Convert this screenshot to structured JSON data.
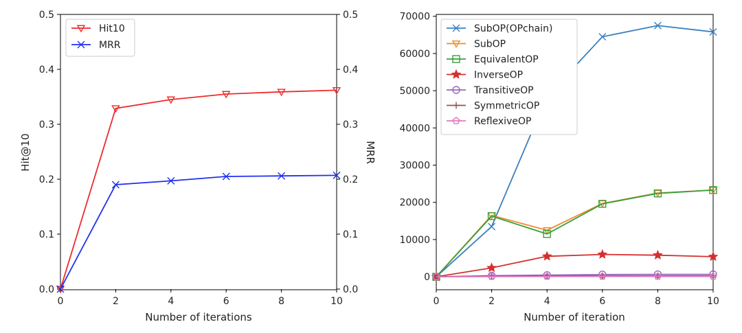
{
  "chart_data": [
    {
      "type": "line",
      "title": "",
      "xlabel": "Number of iterations",
      "ylabel": "Hit@10",
      "y2label": "MRR",
      "x": [
        0,
        2,
        4,
        6,
        8,
        10
      ],
      "xticks": [
        "0",
        "2",
        "4",
        "6",
        "8",
        "10"
      ],
      "xlim": [
        0,
        10
      ],
      "ylim": [
        0,
        0.5
      ],
      "y2lim": [
        0,
        0.5
      ],
      "yticks": [
        "0.0",
        "0.1",
        "0.2",
        "0.3",
        "0.4",
        "0.5"
      ],
      "y2ticks": [
        "0.0",
        "0.1",
        "0.2",
        "0.3",
        "0.4",
        "0.5"
      ],
      "legend_position": "top-left",
      "grid": false,
      "series": [
        {
          "name": "Hit10",
          "color": "#ee2a2a",
          "marker": "triangle-down",
          "axis": "left",
          "values": [
            0.0,
            0.329,
            0.345,
            0.355,
            0.359,
            0.362
          ]
        },
        {
          "name": "MRR",
          "color": "#1f2ff0",
          "marker": "x",
          "axis": "right",
          "values": [
            0.0,
            0.19,
            0.197,
            0.205,
            0.206,
            0.207
          ]
        }
      ]
    },
    {
      "type": "line",
      "title": "",
      "xlabel": "Number of iteration",
      "ylabel": "",
      "x": [
        0,
        2,
        4,
        6,
        8,
        10
      ],
      "xticks": [
        "0",
        "2",
        "4",
        "6",
        "8",
        "10"
      ],
      "xlim": [
        0,
        10
      ],
      "ylim": [
        -3300,
        70500
      ],
      "yticks": [
        "0",
        "10000",
        "20000",
        "30000",
        "40000",
        "50000",
        "60000",
        "70000"
      ],
      "legend_position": "top-left",
      "grid": false,
      "series": [
        {
          "name": "SubOP(OPchain)",
          "color": "#3a7ebf",
          "marker": "x",
          "values": [
            0,
            13500,
            48500,
            64500,
            67500,
            65800
          ]
        },
        {
          "name": "SubOP",
          "color": "#f28a2e",
          "marker": "triangle-down",
          "values": [
            0,
            16500,
            12500,
            19700,
            22500,
            23300
          ]
        },
        {
          "name": "EquivalentOP",
          "color": "#36a03a",
          "marker": "square",
          "values": [
            0,
            16300,
            11500,
            19600,
            22400,
            23300
          ]
        },
        {
          "name": "InverseOP",
          "color": "#d62f2f",
          "marker": "star",
          "values": [
            0,
            2400,
            5500,
            6000,
            5800,
            5400
          ]
        },
        {
          "name": "TransitiveOP",
          "color": "#9467bd",
          "marker": "circle",
          "values": [
            0,
            300,
            450,
            600,
            650,
            650
          ]
        },
        {
          "name": "SymmetricOP",
          "color": "#8c564b",
          "marker": "plus",
          "values": [
            0,
            150,
            200,
            250,
            250,
            250
          ]
        },
        {
          "name": "ReflexiveOP",
          "color": "#e377c2",
          "marker": "pentagon",
          "values": [
            0,
            50,
            80,
            100,
            100,
            100
          ]
        }
      ]
    }
  ]
}
